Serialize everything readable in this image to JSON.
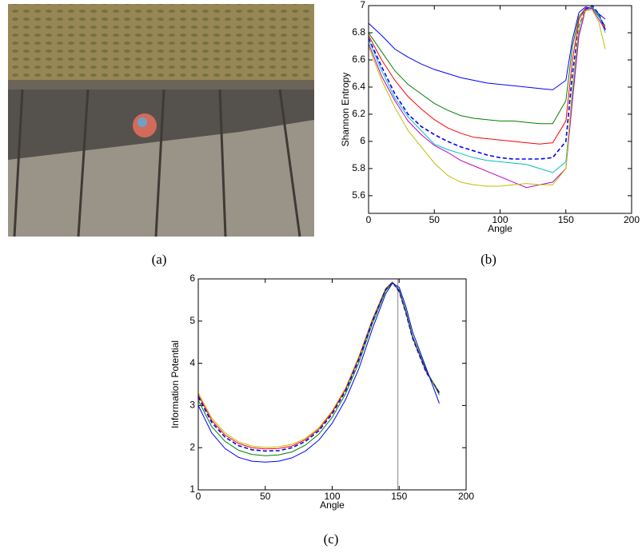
{
  "captions": [
    "(a)",
    "(b)",
    "(c)"
  ],
  "chart_data": [
    {
      "type": "line",
      "xlabel": "Angle",
      "ylabel": "Shannon Entropy",
      "xlim": [
        0,
        200
      ],
      "ylim": [
        5.47,
        7
      ],
      "xticks": [
        0,
        50,
        100,
        150,
        200
      ],
      "yticks": [
        5.6,
        5.8,
        6,
        6.2,
        6.4,
        6.6,
        6.8,
        7
      ],
      "x": [
        0,
        10,
        20,
        30,
        40,
        50,
        60,
        70,
        80,
        90,
        100,
        110,
        120,
        130,
        140,
        150,
        155,
        160,
        165,
        170,
        175,
        180
      ],
      "series": [
        {
          "color": "#0000ff",
          "values": [
            6.87,
            6.78,
            6.68,
            6.62,
            6.57,
            6.53,
            6.5,
            6.47,
            6.45,
            6.43,
            6.42,
            6.41,
            6.4,
            6.39,
            6.38,
            6.45,
            6.75,
            6.95,
            6.99,
            6.98,
            6.94,
            6.9
          ]
        },
        {
          "color": "#008000",
          "values": [
            6.8,
            6.66,
            6.52,
            6.42,
            6.35,
            6.28,
            6.23,
            6.19,
            6.17,
            6.16,
            6.15,
            6.15,
            6.14,
            6.13,
            6.13,
            6.3,
            6.7,
            6.92,
            6.98,
            6.99,
            6.92,
            6.85
          ]
        },
        {
          "color": "#ff0000",
          "values": [
            6.78,
            6.6,
            6.45,
            6.33,
            6.24,
            6.16,
            6.1,
            6.06,
            6.03,
            6.02,
            6.01,
            6,
            5.99,
            5.98,
            5.99,
            6.15,
            6.6,
            6.9,
            6.98,
            6.99,
            6.93,
            6.83
          ]
        },
        {
          "color": "#0000ff",
          "dash": true,
          "values": [
            6.76,
            6.55,
            6.35,
            6.2,
            6.11,
            6.05,
            6,
            5.96,
            5.93,
            5.9,
            5.88,
            5.87,
            5.87,
            5.87,
            5.88,
            6,
            6.5,
            6.85,
            6.97,
            7,
            6.94,
            6.82
          ]
        },
        {
          "color": "#00bfbf",
          "values": [
            6.75,
            6.52,
            6.32,
            6.18,
            6.08,
            5.98,
            5.94,
            5.91,
            5.88,
            5.86,
            5.85,
            5.84,
            5.83,
            5.8,
            5.77,
            5.85,
            6.35,
            6.8,
            6.97,
            6.99,
            6.93,
            6.8
          ]
        },
        {
          "color": "#bf00bf",
          "values": [
            6.72,
            6.48,
            6.3,
            6.15,
            6.05,
            5.97,
            5.92,
            5.86,
            5.82,
            5.78,
            5.74,
            5.7,
            5.66,
            5.68,
            5.7,
            5.8,
            6.3,
            6.78,
            6.97,
            6.98,
            6.9,
            6.82
          ]
        },
        {
          "color": "#bfbf00",
          "values": [
            6.7,
            6.45,
            6.25,
            6.08,
            5.96,
            5.84,
            5.75,
            5.7,
            5.68,
            5.67,
            5.67,
            5.68,
            5.69,
            5.68,
            5.68,
            5.8,
            6.4,
            6.85,
            6.96,
            6.97,
            6.88,
            6.68
          ]
        }
      ]
    },
    {
      "type": "line",
      "xlabel": "Angle",
      "ylabel": "Information Potential",
      "xlim": [
        0,
        200
      ],
      "ylim": [
        1,
        6
      ],
      "xticks": [
        0,
        50,
        100,
        150,
        200
      ],
      "yticks": [
        1,
        2,
        3,
        4,
        5,
        6
      ],
      "vline": 149,
      "vline_color": "#999999",
      "x": [
        0,
        10,
        20,
        30,
        40,
        50,
        60,
        70,
        80,
        90,
        100,
        110,
        120,
        130,
        140,
        145,
        150,
        155,
        160,
        170,
        180
      ],
      "series": [
        {
          "color": "#bfbf00",
          "values": [
            3.3,
            2.7,
            2.35,
            2.14,
            2.04,
            2.01,
            2.02,
            2.08,
            2.22,
            2.47,
            2.87,
            3.42,
            4.17,
            5.05,
            5.78,
            5.93,
            5.72,
            5.22,
            4.62,
            3.82,
            3.32
          ]
        },
        {
          "color": "#ff0000",
          "values": [
            3.25,
            2.65,
            2.3,
            2.1,
            2,
            1.97,
            1.98,
            2.04,
            2.19,
            2.44,
            2.84,
            3.38,
            4.13,
            5.02,
            5.76,
            5.92,
            5.71,
            5.21,
            4.61,
            3.81,
            3.3
          ]
        },
        {
          "color": "#0000ff",
          "dash": true,
          "values": [
            3.2,
            2.6,
            2.25,
            2.05,
            1.95,
            1.92,
            1.93,
            2,
            2.15,
            2.4,
            2.8,
            3.35,
            4.1,
            5,
            5.75,
            5.92,
            5.7,
            5.2,
            4.6,
            3.8,
            3.3
          ]
        },
        {
          "color": "#008000",
          "values": [
            3.12,
            2.5,
            2.15,
            1.94,
            1.84,
            1.81,
            1.83,
            1.9,
            2.06,
            2.32,
            2.72,
            3.28,
            4.02,
            4.94,
            5.72,
            5.91,
            5.74,
            5.25,
            4.65,
            3.85,
            3.25
          ]
        },
        {
          "color": "#0000ff",
          "values": [
            3,
            2.35,
            1.98,
            1.77,
            1.68,
            1.66,
            1.68,
            1.76,
            1.92,
            2.18,
            2.58,
            3.14,
            3.88,
            4.82,
            5.65,
            5.9,
            5.8,
            5.35,
            4.75,
            3.9,
            3.05
          ]
        }
      ]
    }
  ]
}
